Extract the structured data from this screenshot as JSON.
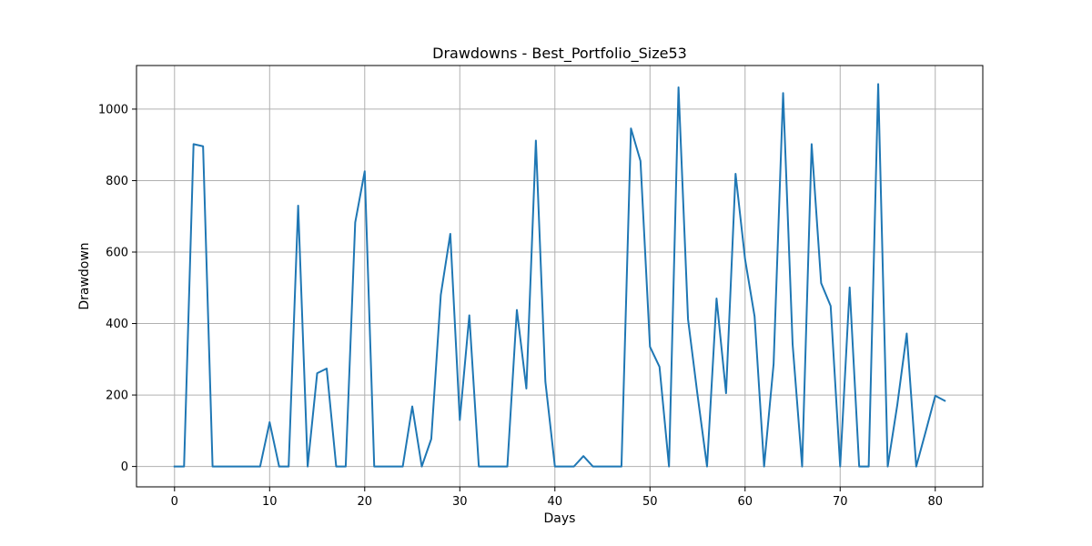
{
  "chart_data": {
    "type": "line",
    "title": "Drawdowns - Best_Portfolio_Size53",
    "xlabel": "Days",
    "ylabel": "Drawdown",
    "xlim": [
      -4,
      85
    ],
    "ylim": [
      -57,
      1122
    ],
    "xticks": [
      0,
      10,
      20,
      30,
      40,
      50,
      60,
      70,
      80
    ],
    "yticks": [
      0,
      200,
      400,
      600,
      800,
      1000
    ],
    "grid": true,
    "colors": {
      "line": "#1f77b4",
      "grid": "#b0b0b0"
    },
    "series": [
      {
        "x": [
          0,
          1,
          2,
          3,
          4,
          5,
          6,
          7,
          8,
          9,
          10,
          11,
          12,
          13,
          14,
          15,
          16,
          17,
          18,
          19,
          20,
          21,
          22,
          23,
          24,
          25,
          26,
          27,
          28,
          29,
          30,
          31,
          32,
          33,
          34,
          35,
          36,
          37,
          38,
          39,
          40,
          41,
          42,
          43,
          44,
          45,
          46,
          47,
          48,
          49,
          50,
          51,
          52,
          53,
          54,
          55,
          56,
          57,
          58,
          59,
          60,
          61,
          62,
          63,
          64,
          65,
          66,
          67,
          68,
          69,
          70,
          71,
          72,
          73,
          74,
          75,
          76,
          77,
          78,
          79,
          80,
          81
        ],
        "y": [
          0,
          0,
          902,
          896,
          0,
          0,
          0,
          0,
          0,
          0,
          124,
          0,
          0,
          730,
          0,
          261,
          274,
          0,
          0,
          683,
          826,
          0,
          0,
          0,
          0,
          168,
          0,
          77,
          480,
          651,
          130,
          423,
          0,
          0,
          0,
          0,
          438,
          218,
          912,
          237,
          0,
          0,
          0,
          29,
          0,
          0,
          0,
          0,
          946,
          855,
          335,
          279,
          0,
          1061,
          412,
          200,
          0,
          470,
          205,
          819,
          580,
          420,
          0,
          287,
          1045,
          342,
          0,
          902,
          513,
          449,
          0,
          501,
          0,
          0,
          1070,
          0,
          171,
          372,
          0,
          98,
          198,
          184
        ]
      }
    ]
  }
}
